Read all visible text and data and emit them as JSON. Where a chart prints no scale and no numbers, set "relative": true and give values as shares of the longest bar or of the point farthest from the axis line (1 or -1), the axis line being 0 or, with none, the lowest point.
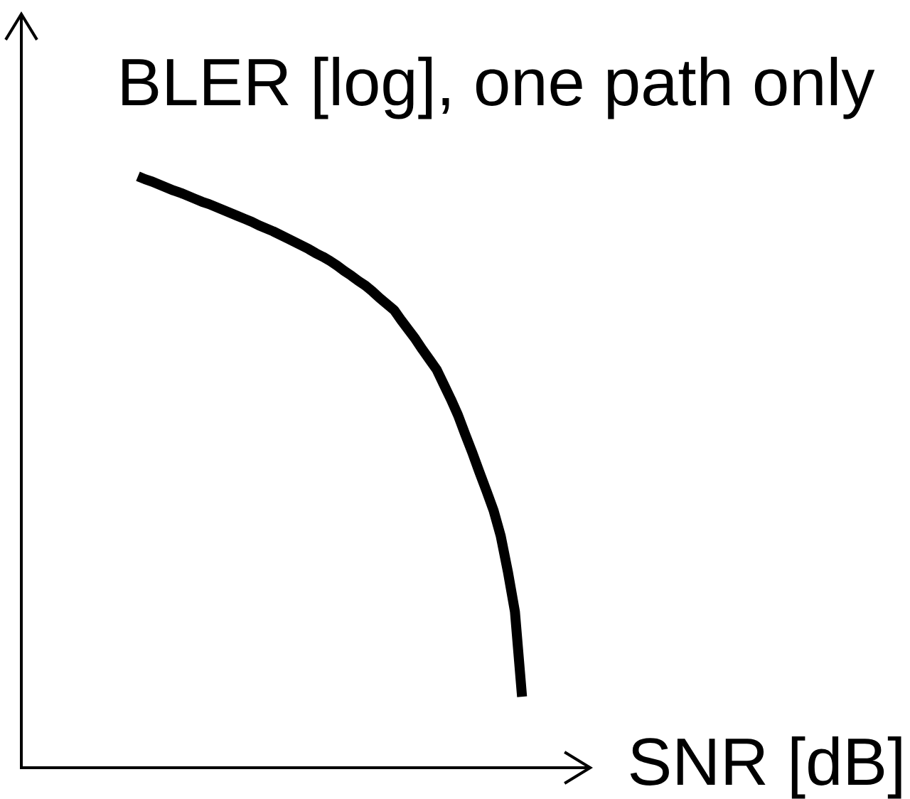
{
  "chart_data": {
    "type": "line",
    "relative": true,
    "xlabel": "SNR [dB]",
    "ylabel": "BLER [log], one path only",
    "color": "#000000",
    "categories": [
      null,
      null,
      null,
      null,
      null,
      null,
      null,
      null,
      null,
      null,
      null,
      null,
      null,
      null,
      null,
      null,
      null,
      null,
      null,
      null,
      null,
      null,
      null,
      null,
      null,
      null,
      null,
      null,
      null,
      null,
      null,
      null,
      null,
      null,
      null,
      null,
      null,
      null,
      null,
      null,
      null,
      null,
      null,
      null,
      null,
      null,
      null,
      null,
      null,
      null,
      null,
      null,
      null,
      null,
      null
    ],
    "values": [
      1.0,
      0.995,
      0.991,
      0.986,
      0.981,
      0.976,
      0.972,
      0.967,
      0.962,
      0.957,
      0.953,
      0.948,
      0.943,
      0.938,
      0.933,
      0.928,
      0.923,
      0.917,
      0.912,
      0.907,
      0.901,
      0.895,
      0.889,
      0.883,
      0.877,
      0.87,
      0.864,
      0.857,
      0.849,
      0.84,
      0.832,
      0.823,
      0.815,
      0.805,
      0.794,
      0.784,
      0.774,
      0.757,
      0.741,
      0.725,
      0.707,
      0.69,
      0.673,
      0.648,
      0.623,
      0.596,
      0.564,
      0.533,
      0.5,
      0.468,
      0.435,
      0.392,
      0.332,
      0.264,
      0.12
    ]
  }
}
